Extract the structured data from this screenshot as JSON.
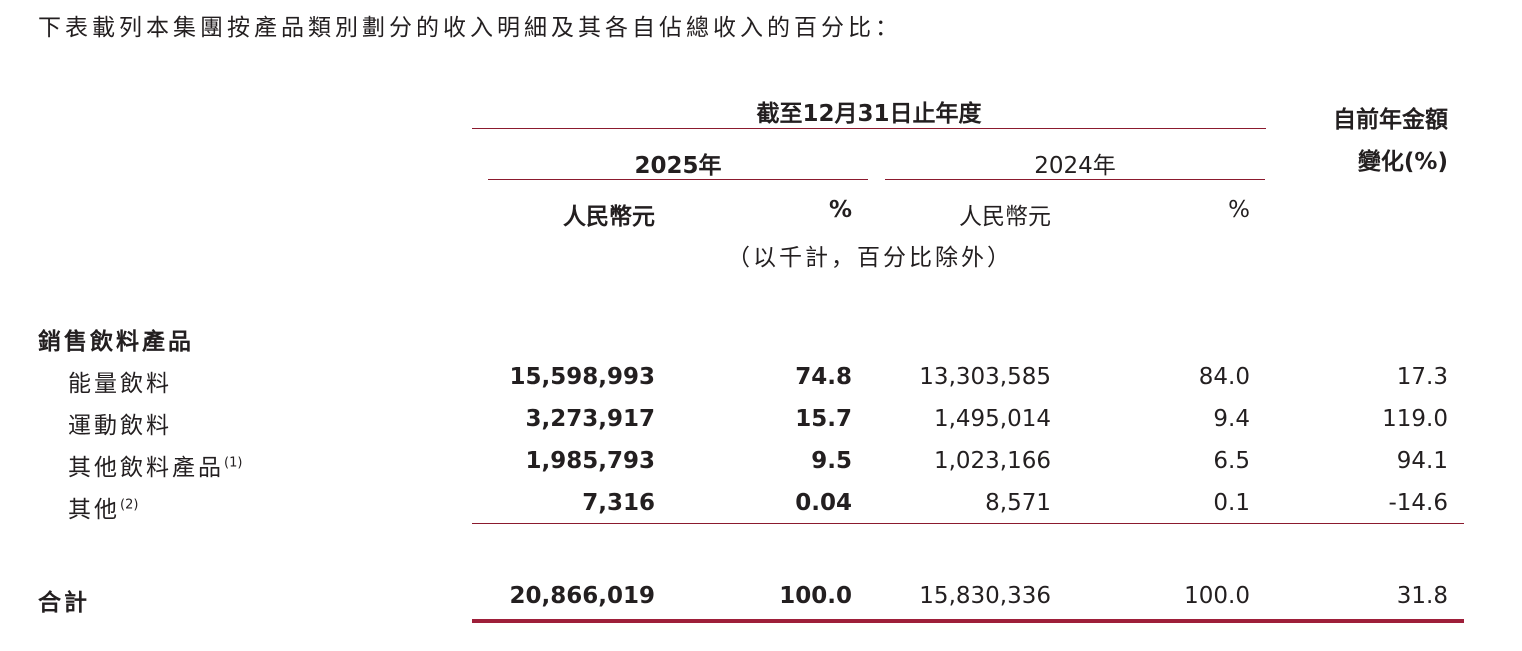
{
  "intro": "下表載列本集團按產品類別劃分的收入明細及其各自佔總收入的百分比：",
  "header": {
    "period": "截至12月31日止年度",
    "year_current": "2025年",
    "year_prior": "2024年",
    "change_line1": "自前年金額",
    "change_line2": "變化(%)",
    "currency_current": "人民幣元",
    "pct_current": "%",
    "currency_prior": "人民幣元",
    "pct_prior": "%",
    "unit_note": "（以千計，百分比除外）"
  },
  "section": {
    "title": "銷售飲料產品"
  },
  "rows": [
    {
      "label": "能量飲料",
      "note": "",
      "cur": "15,598,993",
      "cur_pct": "74.8",
      "prior": "13,303,585",
      "prior_pct": "84.0",
      "change": "17.3"
    },
    {
      "label": "運動飲料",
      "note": "",
      "cur": "3,273,917",
      "cur_pct": "15.7",
      "prior": "1,495,014",
      "prior_pct": "9.4",
      "change": "119.0"
    },
    {
      "label": "其他飲料產品",
      "note": "(1)",
      "cur": "1,985,793",
      "cur_pct": "9.5",
      "prior": "1,023,166",
      "prior_pct": "6.5",
      "change": "94.1"
    },
    {
      "label": "其他",
      "note": "(2)",
      "cur": "7,316",
      "cur_pct": "0.04",
      "prior": "8,571",
      "prior_pct": "0.1",
      "change": "-14.6"
    }
  ],
  "total": {
    "label": "合計",
    "cur": "20,866,019",
    "cur_pct": "100.0",
    "prior": "15,830,336",
    "prior_pct": "100.0",
    "change": "31.8"
  },
  "colors": {
    "rule": "#8b1a2e",
    "text": "#231f20"
  }
}
